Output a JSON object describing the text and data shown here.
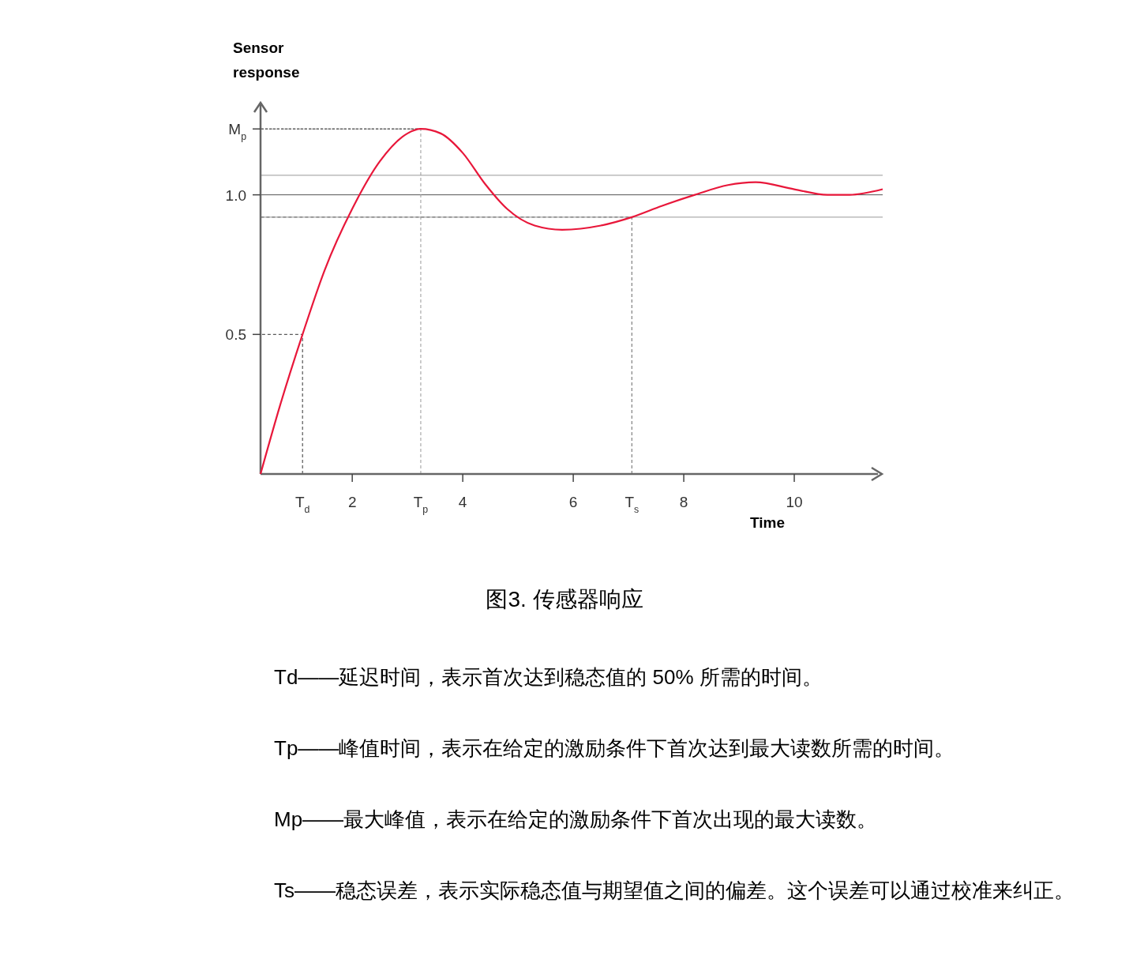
{
  "chart_data": {
    "type": "line",
    "title": "图3. 传感器响应",
    "xlabel": "Time",
    "ylabel": "Sensor response",
    "x": [
      0.34,
      0.7,
      1.1,
      1.5,
      2.0,
      2.5,
      3.0,
      3.24,
      3.6,
      4.0,
      4.4,
      4.8,
      5.3,
      5.8,
      6.5,
      7.06,
      7.6,
      8.2,
      8.8,
      9.3,
      10.0,
      10.6,
      11.0,
      11.6
    ],
    "series": [
      {
        "color": "#e8173a",
        "values": [
          0,
          0.25,
          0.5,
          0.73,
          0.95,
          1.12,
          1.22,
          1.236,
          1.22,
          1.15,
          1.04,
          0.95,
          0.89,
          0.875,
          0.89,
          0.92,
          0.96,
          1.0,
          1.035,
          1.045,
          1.02,
          1.0,
          1.0,
          1.02
        ]
      }
    ],
    "xlim": [
      0.34,
      11.6
    ],
    "ylim": [
      0,
      1.33
    ],
    "xticks": [
      {
        "value": 1.1,
        "label": "T$_{d}$"
      },
      2,
      {
        "value": 3.24,
        "label": "T$_{p}$"
      },
      4,
      6,
      {
        "value": 7.06,
        "label": "T$_{s}$"
      },
      8,
      10
    ],
    "yticks": [
      0.5,
      {
        "value": 1.0,
        "label": "1.0"
      },
      {
        "value": 1.236,
        "label": "M$_{p}$"
      }
    ],
    "ref_lines": [
      {
        "axis": "y",
        "value": 1.0,
        "color": "#555555",
        "line_style": "solid"
      },
      {
        "axis": "y",
        "value": 1.07,
        "color": "#999999",
        "line_style": "solid"
      },
      {
        "axis": "y",
        "value": 0.92,
        "color": "#999999",
        "line_style": "solid"
      },
      {
        "axis": "x",
        "value": 1.1,
        "color": "#333333",
        "line_style": "dashed"
      },
      {
        "axis": "x",
        "value": 3.24,
        "color": "#999999",
        "line_style": "dashed"
      },
      {
        "axis": "x",
        "value": 7.06,
        "color": "#666666",
        "line_style": "dashed"
      },
      {
        "axis": "y",
        "value": 1.236,
        "color": "#666666",
        "line_style": "dashed"
      }
    ],
    "annotations": [
      "Td——延迟时间，表示首次达到稳态值的 50% 所需的时间。",
      "Tp——峰值时间，表示在给定的激励条件下首次达到最大读数所需的时间。",
      "Mp——最大峰值，表示在给定的激励条件下首次出现的最大读数。",
      "Ts——稳态误差，表示实际稳态值与期望值之间的偏差。这个误差可以通过校准来纠正。"
    ],
    "grid": false,
    "marker": "none",
    "line_style": "solid"
  }
}
